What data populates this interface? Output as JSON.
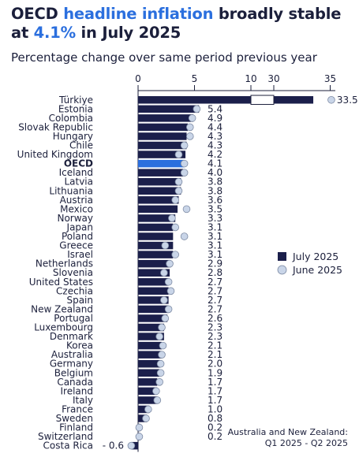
{
  "title": {
    "part1": "OECD ",
    "highlight1": "headline inflation",
    "part2": " broadly stable at ",
    "highlight2": "4.1%",
    "part3": " in July 2025"
  },
  "subtitle": "Percentage change over same period previous year",
  "note": {
    "line1": "Australia and New Zealand:",
    "line2": "Q1 2025 - Q2 2025"
  },
  "colors": {
    "bar": "#1b1f4b",
    "oecd_bar": "#2b6fde",
    "june_marker": "#c9d5e8",
    "june_marker_stroke": "#7d8aa3",
    "text": "#1b1f3b"
  },
  "chart_data": {
    "type": "bar",
    "orientation": "horizontal",
    "axis_break": true,
    "x_ticks_left": [
      0,
      5,
      10
    ],
    "x_ticks_right": [
      30,
      35
    ],
    "legend": [
      "July 2025",
      "June 2025"
    ],
    "legend_position": "right",
    "categories": [
      "Türkiye",
      "Estonia",
      "Colombia",
      "Slovak Republic",
      "Hungary",
      "Chile",
      "United Kingdom",
      "OECD",
      "Iceland",
      "Latvia",
      "Lithuania",
      "Austria",
      "Mexico",
      "Norway",
      "Japan",
      "Poland",
      "Greece",
      "Israel",
      "Netherlands",
      "Slovenia",
      "United States",
      "Czechia",
      "Spain",
      "New Zealand",
      "Portugal",
      "Luxembourg",
      "Denmark",
      "Korea",
      "Australia",
      "Germany",
      "Belgium",
      "Canada",
      "Ireland",
      "Italy",
      "France",
      "Sweden",
      "Finland",
      "Switzerland",
      "Costa Rica"
    ],
    "highlight_category": "OECD",
    "series": [
      {
        "name": "July 2025",
        "values": [
          33.5,
          5.4,
          4.9,
          4.4,
          4.3,
          4.3,
          4.2,
          4.1,
          4.0,
          3.8,
          3.8,
          3.6,
          3.5,
          3.3,
          3.1,
          3.1,
          3.1,
          3.1,
          2.9,
          2.8,
          2.7,
          2.7,
          2.7,
          2.7,
          2.6,
          2.3,
          2.3,
          2.1,
          2.1,
          2.0,
          1.9,
          1.7,
          1.7,
          1.7,
          1.0,
          0.8,
          0.2,
          0.2,
          -0.6
        ],
        "labels": [
          "33.5",
          "5.4",
          "4.9",
          "4.4",
          "4.3",
          "4.3",
          "4.2",
          "4.1",
          "4.0",
          "3.8",
          "3.8",
          "3.6",
          "3.5",
          "3.3",
          "3.1",
          "3.1",
          "3.1",
          "3.1",
          "2.9",
          "2.8",
          "2.7",
          "2.7",
          "2.7",
          "2.7",
          "2.6",
          "2.3",
          "2.3",
          "2.1",
          "2.1",
          "2.0",
          "1.9",
          "1.7",
          "1.7",
          "1.7",
          "1.0",
          "0.8",
          "0.2",
          "0.2",
          "- 0.6"
        ]
      },
      {
        "name": "June 2025",
        "values": [
          35.1,
          5.2,
          4.8,
          4.6,
          4.6,
          4.1,
          3.6,
          4.1,
          4.1,
          3.6,
          3.6,
          3.3,
          4.3,
          3.0,
          3.3,
          4.1,
          2.4,
          3.3,
          2.8,
          2.3,
          2.7,
          2.9,
          2.3,
          2.7,
          2.4,
          2.1,
          1.9,
          2.2,
          2.1,
          2.0,
          2.0,
          1.9,
          1.6,
          1.7,
          0.9,
          0.7,
          0.1,
          0.1,
          -0.6
        ]
      }
    ]
  }
}
